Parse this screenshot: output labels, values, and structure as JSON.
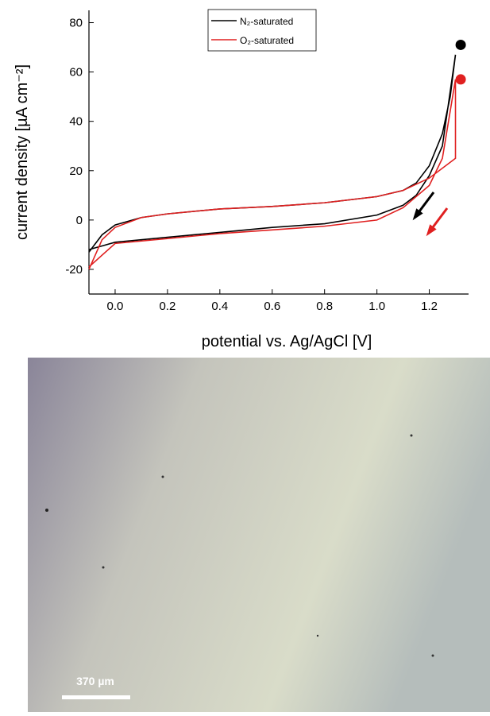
{
  "chart_data": {
    "type": "line",
    "ylabel": "current density [µA cm⁻²]",
    "xlabel": "potential vs. Ag/AgCl [V]",
    "xlim": [
      -0.1,
      1.35
    ],
    "ylim": [
      -30,
      85
    ],
    "xticks": [
      {
        "value": 0,
        "label": "0.0"
      },
      {
        "value": 0.2,
        "label": "0.2"
      },
      {
        "value": 0.4,
        "label": "0.4"
      },
      {
        "value": 0.6,
        "label": "0.6"
      },
      {
        "value": 0.8,
        "label": "0.8"
      },
      {
        "value": 1.0,
        "label": "1.0"
      },
      {
        "value": 1.2,
        "label": "1.2"
      }
    ],
    "yticks": [
      -20,
      0,
      20,
      40,
      60,
      80
    ],
    "legend": "top-center",
    "series": [
      {
        "name": "N₂-saturated",
        "color": "#000000",
        "x": [
          -0.1,
          -0.05,
          0.0,
          0.1,
          0.2,
          0.4,
          0.6,
          0.8,
          1.0,
          1.1,
          1.15,
          1.2,
          1.25,
          1.28,
          1.3,
          1.25,
          1.2,
          1.15,
          1.1,
          1.0,
          0.8,
          0.6,
          0.4,
          0.2,
          0.0,
          -0.05,
          -0.1
        ],
        "values": [
          -13,
          -6,
          -2,
          1,
          2.5,
          4.5,
          5.5,
          7,
          9.5,
          12,
          15,
          22,
          35,
          50,
          67,
          30,
          18,
          10,
          6,
          2,
          -1.5,
          -3,
          -5,
          -7,
          -9,
          -10.5,
          -12
        ]
      },
      {
        "name": "O₂-saturated",
        "color": "#e02020",
        "x": [
          -0.1,
          -0.05,
          0.0,
          0.1,
          0.2,
          0.4,
          0.6,
          0.8,
          1.0,
          1.1,
          1.2,
          1.3,
          1.3,
          1.25,
          1.2,
          1.1,
          1.0,
          0.8,
          0.6,
          0.4,
          0.2,
          0.0,
          -0.1
        ],
        "values": [
          -20,
          -8,
          -3,
          1,
          2.5,
          4.5,
          5.5,
          7,
          9.5,
          12,
          17,
          25,
          57,
          25,
          14,
          5,
          0,
          -2.5,
          -4,
          -5.5,
          -7.5,
          -9.5,
          -19
        ]
      }
    ],
    "markers": [
      {
        "x": 1.32,
        "y": 71,
        "color": "#000000"
      },
      {
        "x": 1.32,
        "y": 57,
        "color": "#e02020"
      }
    ],
    "scale_bar": "370 µm"
  }
}
